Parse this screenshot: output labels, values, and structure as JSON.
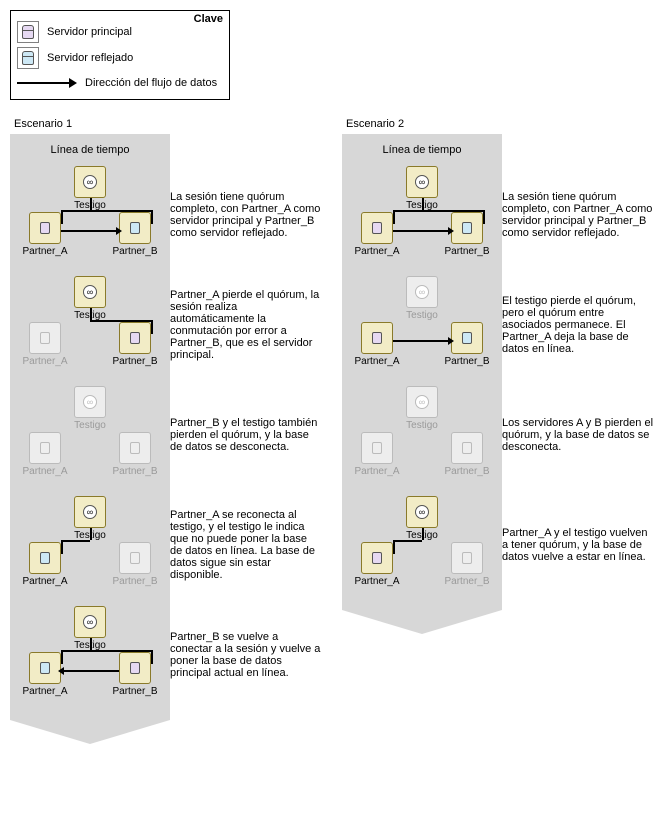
{
  "colors": {
    "timeline_fill": "#d7d7d7",
    "server_fill": "#f2ecc6",
    "server_border": "#8a7a2a",
    "dim_fill": "#ededed",
    "dim_border": "#bbbbbb",
    "principal_db": "#e6d9f2",
    "mirror_db": "#cde8f5",
    "text": "#000000",
    "dim_text": "#9a9a9a",
    "link": "#000000",
    "link_dim": "#c4c4c4"
  },
  "legend": {
    "title": "Clave",
    "principal": "Servidor principal",
    "mirror": "Servidor reflejado",
    "flow": "Dirección del flujo de datos"
  },
  "labels": {
    "witness": "Testigo",
    "partnerA": "Partner_A",
    "partnerB": "Partner_B",
    "timeline": "Línea de tiempo"
  },
  "scenarios": [
    {
      "title": "Escenario 1",
      "steps": [
        {
          "witness": {
            "active": true
          },
          "a": {
            "active": true,
            "role": "principal"
          },
          "b": {
            "active": true,
            "role": "mirror"
          },
          "links": {
            "wa": true,
            "wb": true,
            "ab": "a2b"
          },
          "caption": "La sesión tiene quórum completo, con Partner_A como servidor principal y Partner_B como servidor reflejado."
        },
        {
          "witness": {
            "active": true
          },
          "a": {
            "active": false,
            "role": "none"
          },
          "b": {
            "active": true,
            "role": "principal"
          },
          "links": {
            "wa": false,
            "wb": true,
            "ab": "none"
          },
          "caption": "Partner_A pierde el quórum, la sesión realiza automáticamente la conmutación por error a Partner_B, que es el servidor principal."
        },
        {
          "witness": {
            "active": false
          },
          "a": {
            "active": false,
            "role": "none"
          },
          "b": {
            "active": false,
            "role": "none"
          },
          "links": {
            "wa": false,
            "wb": false,
            "ab": "none"
          },
          "caption": "Partner_B y el testigo también pierden el quórum, y la base de datos se desconecta."
        },
        {
          "witness": {
            "active": true
          },
          "a": {
            "active": true,
            "role": "mirror"
          },
          "b": {
            "active": false,
            "role": "none"
          },
          "links": {
            "wa": true,
            "wb": false,
            "ab": "none"
          },
          "caption": "Partner_A se reconecta al testigo, y el testigo le indica que no puede poner la base de datos en línea. La base de datos sigue sin estar disponible."
        },
        {
          "witness": {
            "active": true
          },
          "a": {
            "active": true,
            "role": "mirror"
          },
          "b": {
            "active": true,
            "role": "principal"
          },
          "links": {
            "wa": true,
            "wb": true,
            "ab": "b2a"
          },
          "caption": "Partner_B se vuelve a conectar a la sesión y vuelve a poner la base de datos principal actual en línea."
        }
      ]
    },
    {
      "title": "Escenario 2",
      "steps": [
        {
          "witness": {
            "active": true
          },
          "a": {
            "active": true,
            "role": "principal"
          },
          "b": {
            "active": true,
            "role": "mirror"
          },
          "links": {
            "wa": true,
            "wb": true,
            "ab": "a2b"
          },
          "caption": "La sesión tiene quórum completo, con Partner_A como servidor principal y Partner_B como servidor reflejado."
        },
        {
          "witness": {
            "active": false
          },
          "a": {
            "active": true,
            "role": "principal"
          },
          "b": {
            "active": true,
            "role": "mirror"
          },
          "links": {
            "wa": false,
            "wb": false,
            "ab": "a2b"
          },
          "caption": "El testigo pierde el quórum, pero el quórum entre asociados permanece. El Partner_A deja la base de datos en línea."
        },
        {
          "witness": {
            "active": false
          },
          "a": {
            "active": false,
            "role": "none"
          },
          "b": {
            "active": false,
            "role": "none"
          },
          "links": {
            "wa": false,
            "wb": false,
            "ab": "none"
          },
          "caption": "Los servidores A y B pierden el quórum, y la base de datos se desconecta."
        },
        {
          "witness": {
            "active": true
          },
          "a": {
            "active": true,
            "role": "principal"
          },
          "b": {
            "active": false,
            "role": "none"
          },
          "links": {
            "wa": true,
            "wb": false,
            "ab": "none"
          },
          "caption": "Partner_A y el testigo vuelven a tener quórum, y la base de datos vuelve a estar en línea."
        }
      ]
    }
  ]
}
